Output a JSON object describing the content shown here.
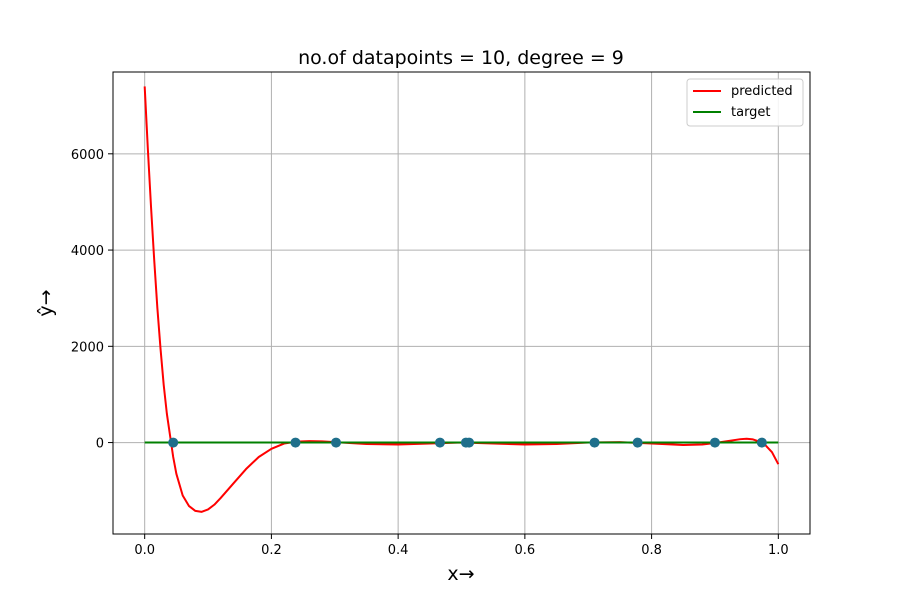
{
  "chart_data": {
    "type": "line",
    "title": "no.of datapoints = 10, degree = 9",
    "xlabel": "x→",
    "ylabel": "ŷ→",
    "xlim": [
      -0.05,
      1.05
    ],
    "ylim": [
      -1900,
      7700
    ],
    "xticks": [
      0.0,
      0.2,
      0.4,
      0.6,
      0.8,
      1.0
    ],
    "xtick_labels": [
      "0.0",
      "0.2",
      "0.4",
      "0.6",
      "0.8",
      "1.0"
    ],
    "yticks": [
      0,
      2000,
      4000,
      6000
    ],
    "ytick_labels": [
      "0",
      "2000",
      "4000",
      "6000"
    ],
    "grid": true,
    "legend_position": "top-right",
    "series": [
      {
        "name": "predicted",
        "color": "#ff0000",
        "x": [
          0.0,
          0.005,
          0.01,
          0.015,
          0.02,
          0.025,
          0.03,
          0.035,
          0.04,
          0.045,
          0.05,
          0.06,
          0.07,
          0.08,
          0.09,
          0.1,
          0.11,
          0.12,
          0.14,
          0.16,
          0.18,
          0.2,
          0.22,
          0.24,
          0.26,
          0.28,
          0.3,
          0.35,
          0.4,
          0.45,
          0.5,
          0.55,
          0.6,
          0.65,
          0.7,
          0.75,
          0.8,
          0.85,
          0.88,
          0.9,
          0.92,
          0.94,
          0.95,
          0.96,
          0.97,
          0.975,
          0.98,
          0.99,
          1.0
        ],
        "y": [
          7400,
          6100,
          4900,
          3800,
          2800,
          1950,
          1200,
          600,
          150,
          -300,
          -650,
          -1100,
          -1320,
          -1420,
          -1440,
          -1390,
          -1290,
          -1150,
          -850,
          -550,
          -300,
          -130,
          -20,
          20,
          30,
          25,
          10,
          -30,
          -40,
          -20,
          0,
          -20,
          -40,
          -30,
          0,
          10,
          -20,
          -50,
          -40,
          -10,
          30,
          70,
          80,
          65,
          20,
          -10,
          -60,
          -200,
          -450
        ]
      },
      {
        "name": "target",
        "color": "#008000",
        "x": [
          0.0,
          1.0
        ],
        "y": [
          0,
          0
        ]
      }
    ],
    "scatter": {
      "color": "#1f6f8b",
      "x": [
        0.045,
        0.238,
        0.302,
        0.466,
        0.507,
        0.512,
        0.71,
        0.778,
        0.9,
        0.974
      ],
      "y": [
        0,
        0,
        0,
        0,
        0,
        0,
        0,
        0,
        0,
        0
      ]
    }
  }
}
